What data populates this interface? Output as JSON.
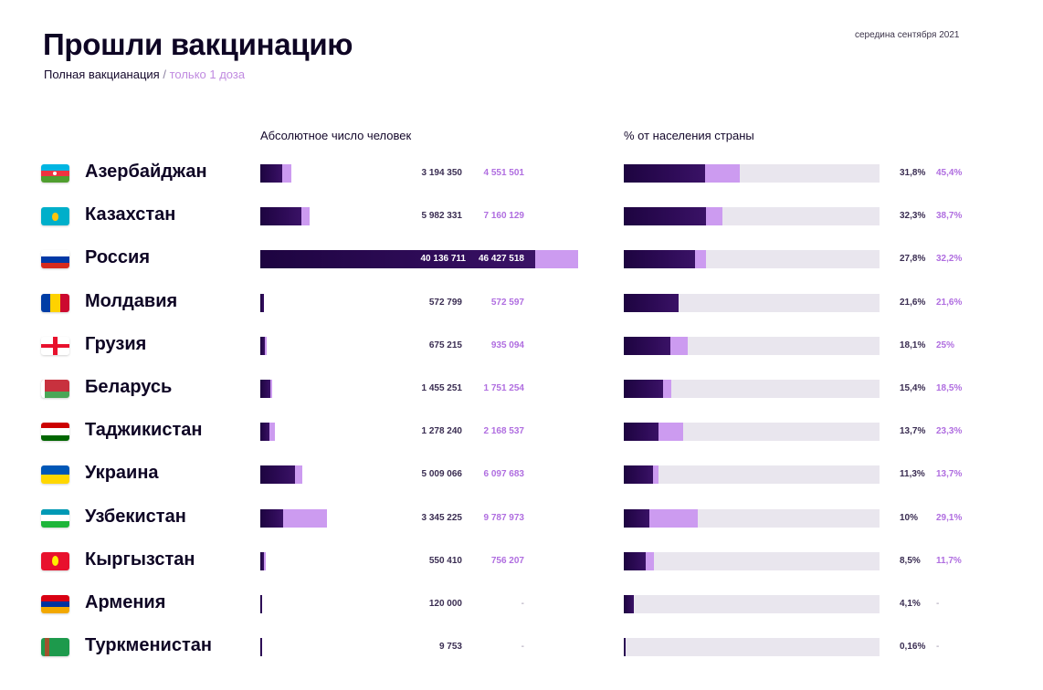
{
  "title": "Прошли вакцинацию",
  "date": "середина сентября 2021",
  "legend": {
    "full": "Полная вакцианация",
    "separator": "/",
    "partial": "только 1 доза"
  },
  "colors": {
    "full": "#1d0440",
    "partial": "#cc9bf0",
    "track": "#e9e6ee"
  },
  "chart_data": {
    "type": "bar",
    "left_header": "Абсолютное число человек",
    "right_header": "% от населения страны",
    "abs_max": 46427518,
    "rows": [
      {
        "country": "Азербайджан",
        "flag": "az-flag-icon",
        "full": 3194350,
        "partial": 4551501,
        "full_label": "3 194 350",
        "partial_label": "4 551 501",
        "full_pct": 31.8,
        "partial_pct": 45.4,
        "full_pct_label": "31,8%",
        "partial_pct_label": "45,4%"
      },
      {
        "country": "Казахстан",
        "flag": "kz-flag-icon",
        "full": 5982331,
        "partial": 7160129,
        "full_label": "5 982 331",
        "partial_label": "7 160 129",
        "full_pct": 32.3,
        "partial_pct": 38.7,
        "full_pct_label": "32,3%",
        "partial_pct_label": "38,7%"
      },
      {
        "country": "Россия",
        "flag": "ru-flag-icon",
        "full": 40136711,
        "partial": 46427518,
        "full_label": "40 136 711",
        "partial_label": "46 427 518",
        "full_pct": 27.8,
        "partial_pct": 32.2,
        "full_pct_label": "27,8%",
        "partial_pct_label": "32,2%"
      },
      {
        "country": "Молдавия",
        "flag": "md-flag-icon",
        "full": 572799,
        "partial": 572597,
        "full_label": "572 799",
        "partial_label": "572 597",
        "full_pct": 21.6,
        "partial_pct": 21.6,
        "full_pct_label": "21,6%",
        "partial_pct_label": "21,6%"
      },
      {
        "country": "Грузия",
        "flag": "ge-flag-icon",
        "full": 675215,
        "partial": 935094,
        "full_label": "675 215",
        "partial_label": "935 094",
        "full_pct": 18.1,
        "partial_pct": 25,
        "full_pct_label": "18,1%",
        "partial_pct_label": "25%"
      },
      {
        "country": "Беларусь",
        "flag": "by-flag-icon",
        "full": 1455251,
        "partial": 1751254,
        "full_label": "1 455 251",
        "partial_label": "1 751 254",
        "full_pct": 15.4,
        "partial_pct": 18.5,
        "full_pct_label": "15,4%",
        "partial_pct_label": "18,5%"
      },
      {
        "country": "Таджикистан",
        "flag": "tj-flag-icon",
        "full": 1278240,
        "partial": 2168537,
        "full_label": "1 278 240",
        "partial_label": "2 168 537",
        "full_pct": 13.7,
        "partial_pct": 23.3,
        "full_pct_label": "13,7%",
        "partial_pct_label": "23,3%"
      },
      {
        "country": "Украина",
        "flag": "ua-flag-icon",
        "full": 5009066,
        "partial": 6097683,
        "full_label": "5 009 066",
        "partial_label": "6 097 683",
        "full_pct": 11.3,
        "partial_pct": 13.7,
        "full_pct_label": "11,3%",
        "partial_pct_label": "13,7%"
      },
      {
        "country": "Узбекистан",
        "flag": "uz-flag-icon",
        "full": 3345225,
        "partial": 9787973,
        "full_label": "3 345 225",
        "partial_label": "9 787 973",
        "full_pct": 10,
        "partial_pct": 29.1,
        "full_pct_label": "10%",
        "partial_pct_label": "29,1%"
      },
      {
        "country": "Кыргызстан",
        "flag": "kg-flag-icon",
        "full": 550410,
        "partial": 756207,
        "full_label": "550 410",
        "partial_label": "756 207",
        "full_pct": 8.5,
        "partial_pct": 11.7,
        "full_pct_label": "8,5%",
        "partial_pct_label": "11,7%"
      },
      {
        "country": "Армения",
        "flag": "am-flag-icon",
        "full": 120000,
        "partial": null,
        "full_label": "120 000",
        "partial_label": "-",
        "full_pct": 4.1,
        "partial_pct": null,
        "full_pct_label": "4,1%",
        "partial_pct_label": "-"
      },
      {
        "country": "Туркменистан",
        "flag": "tm-flag-icon",
        "full": 9753,
        "partial": null,
        "full_label": "9 753",
        "partial_label": "-",
        "full_pct": 0.16,
        "partial_pct": null,
        "full_pct_label": "0,16%",
        "partial_pct_label": "-"
      }
    ]
  }
}
